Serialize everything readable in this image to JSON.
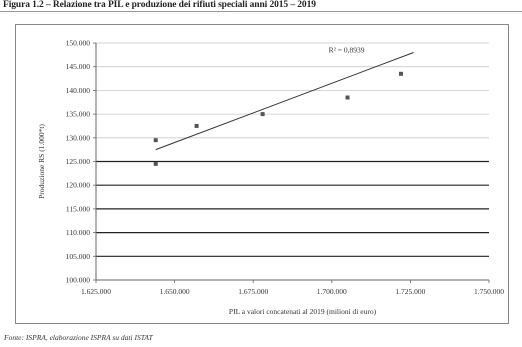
{
  "title": "Figura 1.2 – Relazione tra PIL e produzione dei rifiuti speciali anni 2015 – 2019",
  "source_note": "Fonte: ISPRA, elaborazione ISPRA su dati ISTAT",
  "chart_data": {
    "type": "scatter",
    "title": "",
    "xlabel": "PIL a valori concatenati al 2019 (milioni di euro)",
    "ylabel": "Produzione RS (1.000*t)",
    "xlim": [
      1625000,
      1750000
    ],
    "ylim": [
      100000,
      150000
    ],
    "x_ticks": [
      1625000,
      1650000,
      1675000,
      1700000,
      1725000,
      1750000
    ],
    "x_tick_labels": [
      "1.625.000",
      "1.650.000",
      "1.675.000",
      "1.700.000",
      "1.725.000",
      "1.750.000"
    ],
    "y_ticks": [
      100000,
      105000,
      110000,
      115000,
      120000,
      125000,
      130000,
      135000,
      140000,
      145000,
      150000
    ],
    "y_tick_labels": [
      "100.000",
      "105.000",
      "110.000",
      "115.000",
      "120.000",
      "125.000",
      "130.000",
      "135.000",
      "140.000",
      "145.000",
      "150.000"
    ],
    "grid": "horizontal",
    "points": [
      {
        "x": 1644000,
        "y": 129500
      },
      {
        "x": 1644000,
        "y": 124500
      },
      {
        "x": 1657000,
        "y": 132500
      },
      {
        "x": 1678000,
        "y": 135000
      },
      {
        "x": 1705000,
        "y": 138500
      },
      {
        "x": 1722000,
        "y": 143500
      }
    ],
    "trendline": {
      "x": [
        1644000,
        1726000
      ],
      "y": [
        127500,
        148000
      ]
    },
    "annotation": "R² = 0,8939",
    "annotation_pos": {
      "x": 1699000,
      "y": 148000
    }
  },
  "colors": {
    "marker": "#555555",
    "trendline": "#333333",
    "grid_light": "#c8c8c8",
    "grid_dark": "#222222",
    "frame": "#888888"
  }
}
